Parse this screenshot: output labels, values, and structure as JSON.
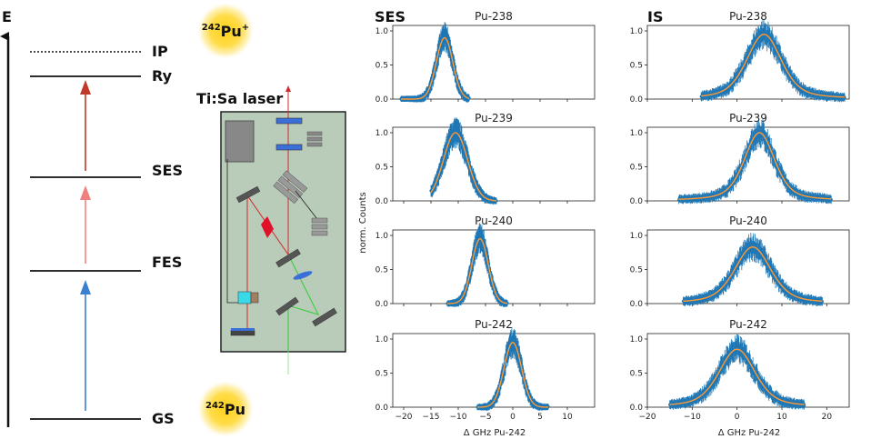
{
  "scheme": {
    "axis_label": "E",
    "levels": [
      {
        "key": "IP",
        "label": "IP",
        "style": "dotted"
      },
      {
        "key": "Ry",
        "label": "Ry",
        "style": "solid"
      },
      {
        "key": "SES",
        "label": "SES",
        "style": "solid"
      },
      {
        "key": "FES",
        "label": "FES",
        "style": "solid"
      },
      {
        "key": "GS",
        "label": "GS",
        "style": "solid"
      }
    ],
    "transition_colors": [
      "#3a7fd0",
      "#f08080",
      "#c0392b"
    ],
    "ion_mass": "242",
    "ion_symbol": "Pu",
    "ion_charge": "+",
    "atom_mass": "242",
    "atom_symbol": "Pu"
  },
  "laser": {
    "title": "Ti:Sa laser",
    "box_color": "#b9cbb9"
  },
  "plots": {
    "column_titles": [
      "SES",
      "IS"
    ],
    "ylabel": "norm. Counts",
    "xlabel": "Δ GHz Pu-242",
    "data_color": "#1f77b4",
    "fit_color": "#ff9933"
  },
  "chart_data": [
    {
      "type": "scatter",
      "panel": "SES Pu-238",
      "title": "Pu-238",
      "xlim": [
        -22,
        15
      ],
      "ylim": [
        0,
        1.08
      ],
      "xticks": [
        -20,
        -15,
        -10,
        -5,
        0,
        5,
        10
      ],
      "yticks": [
        0.0,
        0.5,
        1.0
      ],
      "series": [
        {
          "shape": "gaussian",
          "center": -12.5,
          "sigma": 1.5,
          "amplitude": 0.9,
          "x_range": [
            -20.5,
            -8
          ]
        }
      ]
    },
    {
      "type": "scatter",
      "panel": "SES Pu-239",
      "title": "Pu-239",
      "xlim": [
        -22,
        15
      ],
      "ylim": [
        0,
        1.08
      ],
      "xticks": [
        -20,
        -15,
        -10,
        -5,
        0,
        5,
        10
      ],
      "yticks": [
        0.0,
        0.5,
        1.0
      ],
      "series": [
        {
          "shape": "gaussian",
          "center": -10.5,
          "sigma": 2.2,
          "amplitude": 1.0,
          "x_range": [
            -15,
            -3
          ]
        }
      ]
    },
    {
      "type": "scatter",
      "panel": "SES Pu-240",
      "title": "Pu-240",
      "xlim": [
        -22,
        15
      ],
      "ylim": [
        0,
        1.08
      ],
      "xticks": [
        -20,
        -15,
        -10,
        -5,
        0,
        5,
        10
      ],
      "yticks": [
        0.0,
        0.5,
        1.0
      ],
      "series": [
        {
          "shape": "gaussian",
          "center": -6.0,
          "sigma": 1.5,
          "amplitude": 0.95,
          "x_range": [
            -12,
            -1
          ]
        }
      ]
    },
    {
      "type": "scatter",
      "panel": "SES Pu-242",
      "title": "Pu-242",
      "xlim": [
        -22,
        15
      ],
      "ylim": [
        0,
        1.08
      ],
      "xticks": [
        -20,
        -15,
        -10,
        -5,
        0,
        5,
        10
      ],
      "yticks": [
        0.0,
        0.5,
        1.0
      ],
      "series": [
        {
          "shape": "gaussian",
          "center": 0.0,
          "sigma": 1.6,
          "amplitude": 0.95,
          "x_range": [
            -6.5,
            6.5
          ]
        }
      ]
    },
    {
      "type": "scatter",
      "panel": "IS Pu-238",
      "title": "Pu-238",
      "xlim": [
        -20,
        25
      ],
      "ylim": [
        0,
        1.08
      ],
      "xticks": [
        -20,
        -10,
        0,
        10,
        20
      ],
      "yticks": [
        0.0,
        0.5,
        1.0
      ],
      "series": [
        {
          "shape": "voigt",
          "center": 6.0,
          "width": 4.8,
          "amplitude": 0.95,
          "x_range": [
            -8,
            24
          ]
        }
      ]
    },
    {
      "type": "scatter",
      "panel": "IS Pu-239",
      "title": "Pu-239",
      "xlim": [
        -20,
        25
      ],
      "ylim": [
        0,
        1.08
      ],
      "xticks": [
        -20,
        -10,
        0,
        10,
        20
      ],
      "yticks": [
        0.0,
        0.5,
        1.0
      ],
      "series": [
        {
          "shape": "voigt",
          "center": 5.0,
          "width": 4.2,
          "amplitude": 1.0,
          "x_range": [
            -13,
            21
          ]
        }
      ]
    },
    {
      "type": "scatter",
      "panel": "IS Pu-240",
      "title": "Pu-240",
      "xlim": [
        -20,
        25
      ],
      "ylim": [
        0,
        1.08
      ],
      "xticks": [
        -20,
        -10,
        0,
        10,
        20
      ],
      "yticks": [
        0.0,
        0.5,
        1.0
      ],
      "series": [
        {
          "shape": "voigt",
          "center": 3.5,
          "width": 5.0,
          "amplitude": 0.83,
          "x_range": [
            -12,
            19
          ]
        }
      ]
    },
    {
      "type": "scatter",
      "panel": "IS Pu-242",
      "title": "Pu-242",
      "xlim": [
        -20,
        25
      ],
      "ylim": [
        0,
        1.08
      ],
      "xticks": [
        -20,
        -10,
        0,
        10,
        20
      ],
      "yticks": [
        0.0,
        0.5,
        1.0
      ],
      "series": [
        {
          "shape": "voigt",
          "center": 0.0,
          "width": 5.0,
          "amplitude": 0.85,
          "x_range": [
            -15,
            15
          ]
        }
      ]
    }
  ]
}
